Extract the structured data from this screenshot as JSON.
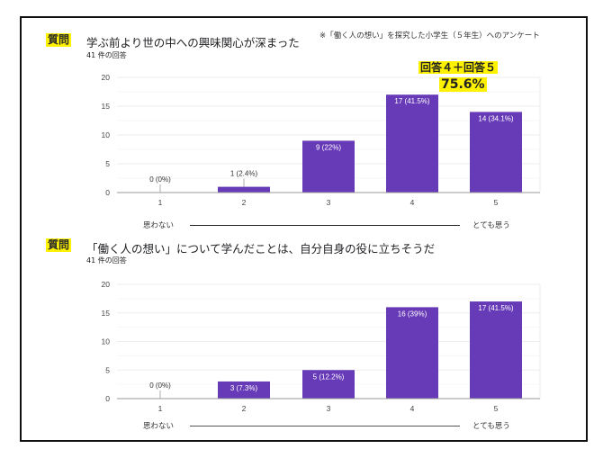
{
  "note": "※「働く人の想い」を探究した小学生（５年生）へのアンケート",
  "highlight": {
    "line1": "回答４＋回答５",
    "line2": "75.6%"
  },
  "colors": {
    "bar": "#673ab7",
    "highlight": "#fff200",
    "grid": "#eeeeee",
    "axis": "#999999"
  },
  "questions": [
    {
      "badge": "質問",
      "title": "学ぶ前より世の中への興味関心が深まった",
      "count": "41 件の回答",
      "scale_low": "思わない",
      "scale_high": "とても思う"
    },
    {
      "badge": "質問",
      "title": "「働く人の想い」について学んだことは、自分自身の役に立ちそうだ",
      "count": "41 件の回答",
      "scale_low": "思わない",
      "scale_high": "とても思う"
    }
  ],
  "chart_data": [
    {
      "type": "bar",
      "title": "学ぶ前より世の中への興味関心が深まった",
      "categories": [
        "1",
        "2",
        "3",
        "4",
        "5"
      ],
      "values": [
        0,
        1,
        9,
        17,
        14
      ],
      "labels": [
        "0 (0%)",
        "1 (2.4%)",
        "9 (22%)",
        "17 (41.5%)",
        "14 (34.1%)"
      ],
      "yticks": [
        "0",
        "5",
        "10",
        "15",
        "20"
      ],
      "ylim": [
        0,
        20
      ],
      "grid": true,
      "xlabel": "",
      "ylabel": ""
    },
    {
      "type": "bar",
      "title": "「働く人の想い」について学んだことは、自分自身の役に立ちそうだ",
      "categories": [
        "1",
        "2",
        "3",
        "4",
        "5"
      ],
      "values": [
        0,
        3,
        5,
        16,
        17
      ],
      "labels": [
        "0 (0%)",
        "3 (7.3%)",
        "5 (12.2%)",
        "16 (39%)",
        "17 (41.5%)"
      ],
      "yticks": [
        "0",
        "5",
        "10",
        "15",
        "20"
      ],
      "ylim": [
        0,
        20
      ],
      "grid": true,
      "xlabel": "",
      "ylabel": ""
    }
  ]
}
